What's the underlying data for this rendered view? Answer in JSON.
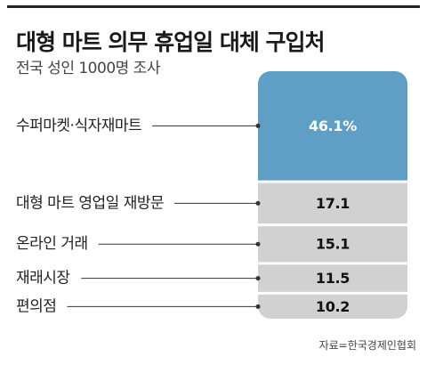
{
  "chart_data": {
    "type": "bar",
    "title": "대형 마트 의무 휴업일 대체 구입처",
    "subtitle": "전국 성인 1000명 조사",
    "categories": [
      "수퍼마켓·식자재마트",
      "대형 마트 영업일 재방문",
      "온라인 거래",
      "재래시장",
      "편의점"
    ],
    "values": [
      46.1,
      17.1,
      15.1,
      11.5,
      10.2
    ],
    "value_labels": [
      "46.1%",
      "17.1",
      "15.1",
      "11.5",
      "10.2"
    ],
    "unit": "%",
    "highlight_index": 0,
    "colors": {
      "highlight": "#5f9ec5",
      "default": "#d1d1d1",
      "highlight_text": "#ffffff",
      "default_text": "#111111",
      "leader": "#333333"
    },
    "source": "자료=한국경제인협회"
  }
}
